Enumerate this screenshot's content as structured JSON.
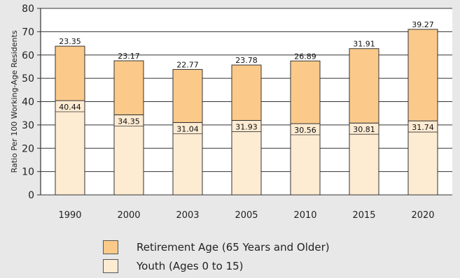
{
  "chart_data": {
    "type": "bar",
    "stacked": true,
    "categories": [
      "1990",
      "2000",
      "2003",
      "2005",
      "2010",
      "2015",
      "2020"
    ],
    "series": [
      {
        "name": "Youth (Ages 0 to 15)",
        "values": [
          40.44,
          34.35,
          31.04,
          31.93,
          30.56,
          30.81,
          31.74
        ],
        "color": "#fdebd2"
      },
      {
        "name": "Retirement Age (65 Years and Older)",
        "values": [
          23.35,
          23.17,
          22.77,
          23.78,
          26.89,
          31.91,
          39.27
        ],
        "color": "#fbca8a"
      }
    ],
    "ylabel": "Ratio Per 100 Working-Age Residents",
    "ylim": [
      0,
      80
    ],
    "yticks": [
      0,
      10,
      20,
      30,
      40,
      50,
      60,
      70,
      80
    ],
    "grid": true,
    "legend_position": "bottom"
  },
  "legend": {
    "items": [
      {
        "label": "Retirement Age (65 Years and Older)",
        "color": "#fbca8a"
      },
      {
        "label": "Youth (Ages 0 to 15)",
        "color": "#fdebd2"
      }
    ]
  }
}
